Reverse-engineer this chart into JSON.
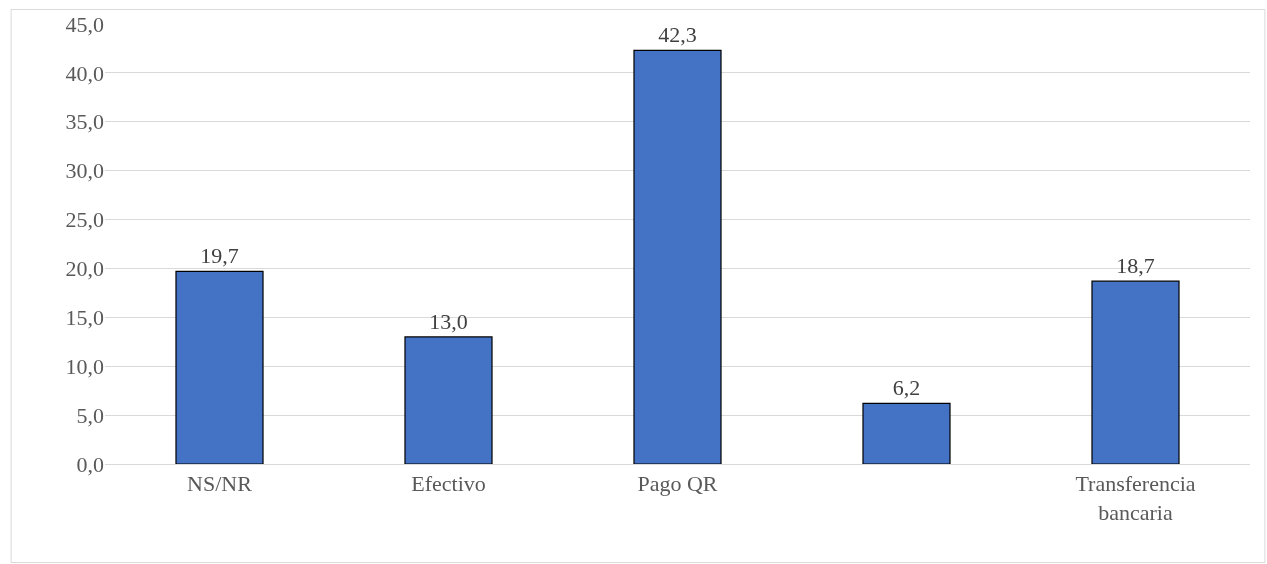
{
  "chart_data": {
    "type": "bar",
    "categories": [
      "NS/NR",
      "Efectivo",
      "Pago QR",
      null,
      "Transferencia bancaria"
    ],
    "values": [
      19.7,
      13.0,
      42.3,
      6.2,
      18.7
    ],
    "value_labels": [
      "19,7",
      "13,0",
      "42,3",
      "6,2",
      "18,7"
    ],
    "color": "#4472c4",
    "ylim": [
      0,
      45
    ],
    "yticks": [
      {
        "value": 0,
        "label": "0,0"
      },
      {
        "value": 5,
        "label": "5,0"
      },
      {
        "value": 10,
        "label": "10,0"
      },
      {
        "value": 15,
        "label": "15,0"
      },
      {
        "value": 20,
        "label": "20,0"
      },
      {
        "value": 25,
        "label": "25,0"
      },
      {
        "value": 30,
        "label": "30,0"
      },
      {
        "value": 35,
        "label": "35,0"
      },
      {
        "value": 40,
        "label": "40,0"
      },
      {
        "value": 45,
        "label": "45,0"
      }
    ],
    "grid": "y"
  }
}
